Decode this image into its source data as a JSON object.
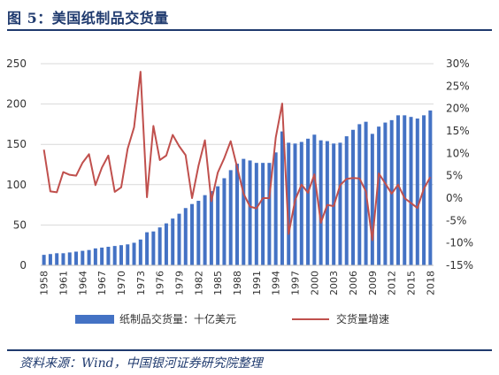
{
  "figure": {
    "title": "图 5：美国纸制品交货量",
    "source": "资料来源：Wind，中国银河证券研究院整理"
  },
  "chart_data": {
    "type": "bar+line",
    "x": [
      1958,
      1959,
      1960,
      1961,
      1962,
      1963,
      1964,
      1965,
      1966,
      1967,
      1968,
      1969,
      1970,
      1971,
      1972,
      1973,
      1974,
      1975,
      1976,
      1977,
      1978,
      1979,
      1980,
      1981,
      1982,
      1983,
      1984,
      1985,
      1986,
      1987,
      1988,
      1989,
      1990,
      1991,
      1992,
      1993,
      1994,
      1995,
      1996,
      1997,
      1998,
      1999,
      2000,
      2001,
      2002,
      2003,
      2004,
      2005,
      2006,
      2007,
      2008,
      2009,
      2010,
      2011,
      2012,
      2013,
      2014,
      2015,
      2016,
      2017,
      2018
    ],
    "x_tick_labels": [
      "1958",
      "1961",
      "1964",
      "1967",
      "1970",
      "1973",
      "1976",
      "1979",
      "1982",
      "1985",
      "1988",
      "1991",
      "1994",
      "1997",
      "2000",
      "2003",
      "2006",
      "2009",
      "2012",
      "2015",
      "2018"
    ],
    "series": [
      {
        "name": "纸制品交货量：十亿美元",
        "type": "bar",
        "axis": "left",
        "color": "#4472c4",
        "values": [
          13,
          14,
          15,
          15,
          16,
          17,
          18,
          19,
          21,
          22,
          23,
          24,
          25,
          26,
          28,
          32,
          41,
          42,
          47,
          52,
          58,
          64,
          71,
          76,
          80,
          87,
          92,
          98,
          108,
          118,
          126,
          132,
          130,
          127,
          127,
          127,
          140,
          166,
          152,
          151,
          153,
          157,
          162,
          155,
          154,
          151,
          152,
          160,
          168,
          175,
          178,
          163,
          172,
          177,
          180,
          186,
          186,
          184,
          182,
          186,
          192
        ]
      },
      {
        "name": "交货量增速",
        "type": "line",
        "axis": "right",
        "color": "#c0504d",
        "values": [
          10.8,
          1.5,
          1.3,
          5.8,
          5.2,
          5.0,
          7.9,
          9.8,
          2.9,
          6.8,
          9.5,
          1.4,
          2.4,
          11.0,
          15.8,
          28.2,
          0.2,
          16.1,
          8.5,
          9.5,
          14.1,
          11.6,
          9.6,
          0.0,
          7.2,
          12.9,
          -0.7,
          5.7,
          8.9,
          12.7,
          6.9,
          1.0,
          -1.9,
          -2.3,
          0.0,
          0.0,
          13.5,
          21.1,
          -8.0,
          -0.5,
          3.0,
          1.2,
          5.3,
          -5.5,
          -1.5,
          -1.8,
          2.9,
          4.3,
          4.5,
          4.4,
          1.5,
          -9.4,
          5.5,
          3.3,
          1.0,
          3.0,
          0.0,
          -1.1,
          -2.2,
          2.1,
          4.7
        ]
      }
    ],
    "y_left": {
      "range": [
        0,
        250
      ],
      "ticks": [
        "0",
        "50",
        "100",
        "150",
        "200",
        "250"
      ]
    },
    "y_right": {
      "range": [
        -15,
        30
      ],
      "ticks": [
        "-15%",
        "-10%",
        "-5%",
        "0%",
        "5%",
        "10%",
        "15%",
        "20%",
        "25%",
        "30%"
      ]
    },
    "legend": {
      "placement": "bottom"
    }
  }
}
